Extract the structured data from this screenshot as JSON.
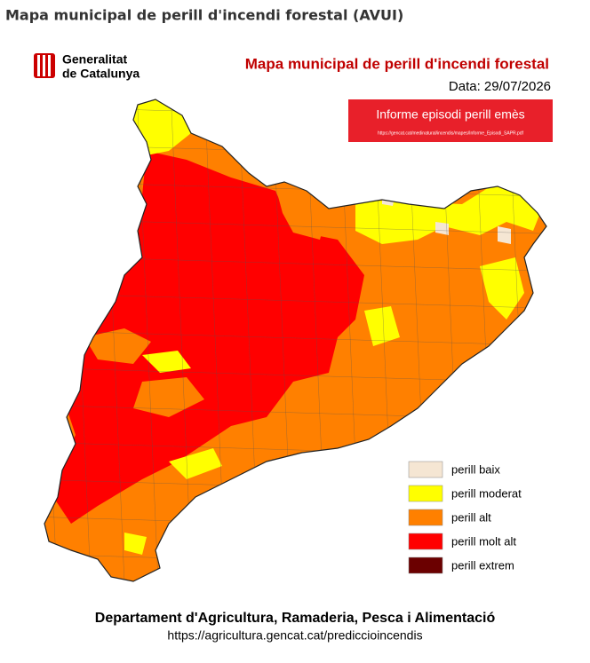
{
  "header": {
    "title": "Mapa municipal de perill d'incendi forestal (AVUI)"
  },
  "logo": {
    "lines": [
      "Generalitat",
      "de Catalunya"
    ]
  },
  "map": {
    "title": "Mapa municipal de perill d'incendi forestal",
    "date": "Data: 29/07/2026",
    "report_button": {
      "label": "Informe episodi perill emès",
      "url": "https://gencat.cat/medinatural/incendis/mapes/Informe_Episodi_SAPR.pdf"
    }
  },
  "legend": {
    "items": [
      {
        "label": "perill baix",
        "color": "#f5e6d3"
      },
      {
        "label": "perill moderat",
        "color": "#ffff00"
      },
      {
        "label": "perill alt",
        "color": "#ff8000"
      },
      {
        "label": "perill molt alt",
        "color": "#ff0000"
      },
      {
        "label": "perill extrem",
        "color": "#6b0000"
      }
    ]
  },
  "footer": {
    "department": "Departament d'Agricultura, Ramaderia, Pesca i Alimentació",
    "url": "https://agricultura.gencat.cat/prediccioincendis"
  }
}
